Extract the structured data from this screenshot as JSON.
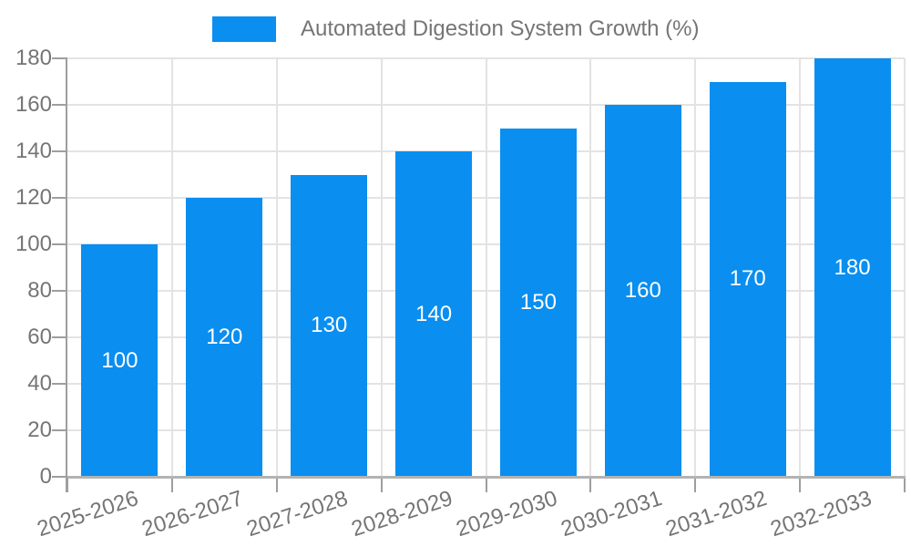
{
  "chart_data": {
    "type": "bar",
    "series_name": "Automated Digestion System Growth (%)",
    "categories": [
      "2025-2026",
      "2026-2027",
      "2027-2028",
      "2028-2029",
      "2029-2030",
      "2030-2031",
      "2031-2032",
      "2032-2033"
    ],
    "values": [
      100,
      120,
      130,
      140,
      150,
      160,
      170,
      180
    ],
    "bar_value_labels": [
      "100",
      "120",
      "130",
      "140",
      "150",
      "160",
      "170",
      "180"
    ],
    "ylim": [
      0,
      180
    ],
    "yticks": [
      0,
      20,
      40,
      60,
      80,
      100,
      120,
      140,
      160,
      180
    ],
    "grid": true,
    "legend_position": "top-center",
    "x_label_rotation_deg": -18,
    "colors": {
      "bar": "#0A8EF0",
      "grid": "#e3e3e3",
      "axis": "#9e9e9e",
      "baseline": "#b3b3b3",
      "text": "#757575",
      "value_label": "#ffffff",
      "background": "#ffffff"
    }
  }
}
